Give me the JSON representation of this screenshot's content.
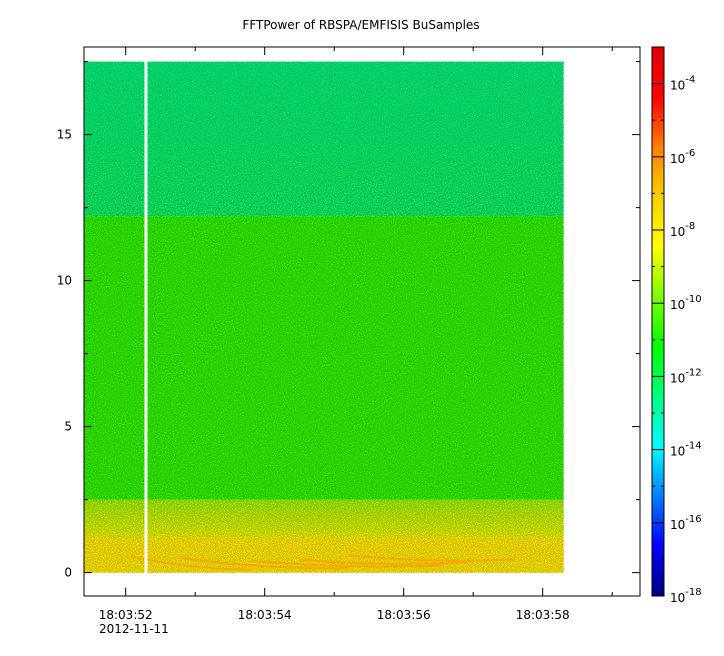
{
  "chart_data": {
    "type": "heatmap",
    "title": "FFTPower of RBSPA/EMFISIS  BuSamples",
    "xlabel": "",
    "ylabel": "",
    "x_axis": {
      "start": "18:03:51.4",
      "end": "18:03:59.4",
      "ticks": [
        "18:03:52",
        "18:03:54",
        "18:03:56",
        "18:03:58"
      ],
      "date_label": "2012-11-11",
      "minor_ticks_between": 1
    },
    "y_axis": {
      "ylim": [
        -0.8,
        18.0
      ],
      "ticks": [
        0,
        5,
        10,
        15
      ]
    },
    "colorbar": {
      "scale": "log",
      "range": [
        1e-18,
        0.001
      ],
      "tick_labels": [
        "10-4",
        "10-6",
        "10-8",
        "10-10",
        "10-12",
        "10-14",
        "10-16",
        "10-18"
      ],
      "colormap": [
        "#00007f",
        "#0000ff",
        "#007fff",
        "#00ffff",
        "#00ff7f",
        "#00ff00",
        "#7fff00",
        "#ffff00",
        "#ffcf00",
        "#ff7f00",
        "#ff0000",
        "#df0000"
      ]
    },
    "data_extent": {
      "time_start": "18:03:51.4",
      "time_end": "18:03:58.3",
      "freq_min": 0,
      "freq_max": 17.5
    },
    "gap": {
      "time_start": "18:03:52.27",
      "time_end": "18:03:52.31"
    },
    "bands": [
      {
        "freq_from": 12.2,
        "freq_to": 17.5,
        "power": 1e-12,
        "color": "#00ee70"
      },
      {
        "freq_from": 2.5,
        "freq_to": 12.2,
        "power": 1e-10,
        "color": "#30f000"
      },
      {
        "freq_from": 1.2,
        "freq_to": 2.5,
        "power": 1e-09,
        "color": "#a8f000"
      },
      {
        "freq_from": 0,
        "freq_to": 1.2,
        "power": 1e-08,
        "color": "#ffe800"
      }
    ],
    "grid": false,
    "legend": "none"
  }
}
